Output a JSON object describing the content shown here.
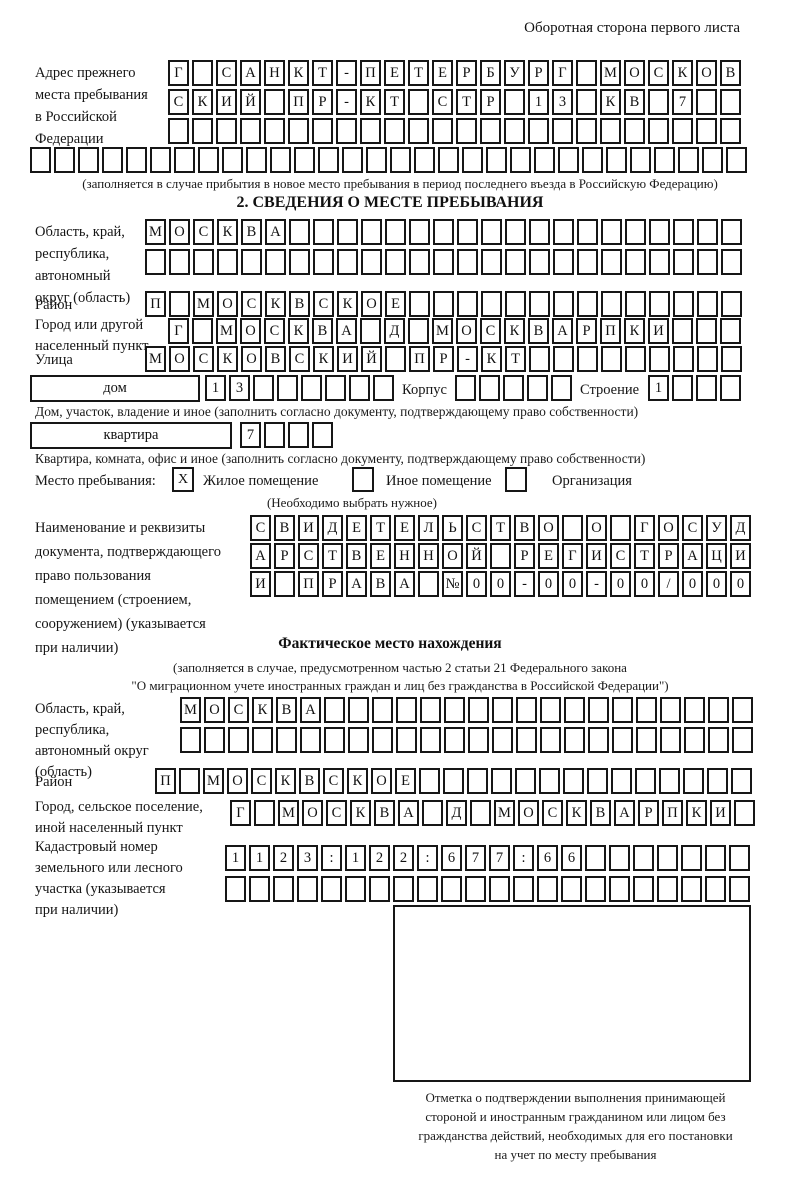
{
  "page": {
    "top_right_title": "Оборотная сторона первого листа"
  },
  "prev_address": {
    "label": "Адрес прежнего\nместа пребывания\nв Российской\nФедерации",
    "row1": "Г САНКТ-ПЕТЕРБУРГ МОСКОВ",
    "row2": "СКИЙ ПР-КТ СТР 13 КВ 7  ",
    "row3": "                        ",
    "row4": "                              ",
    "note": "(заполняется в случае прибытия в новое место пребывания в период последнего въезда в Российскую Федерацию)"
  },
  "section2": {
    "header": "2. СВЕДЕНИЯ О МЕСТЕ ПРЕБЫВАНИЯ",
    "region_label": "Область, край,\nреспублика,\nавтономный\nокруг (область)",
    "region_row1": "МОСКВА                   ",
    "region_row2": "                         ",
    "district_label": "Район",
    "district_row": "П МОСКВСКОЕ              ",
    "city_label": "Город или другой\nнаселенный пункт",
    "city_row": "Г МОСКВА Д МОСКВАРПКИ   ",
    "street_label": "Улица",
    "street_row": "МОСКОВСКИЙ ПР-КТ         ",
    "house_box_label": "дом",
    "house_cells": "13      ",
    "korpus_label": "Корпус",
    "korpus_cells": "     ",
    "stroenie_label": "Строение",
    "stroenie_cells": "1   ",
    "house_note": "Дом, участок, владение и иное (заполнить согласно документу, подтверждающему право собственности)",
    "apartment_box_label": "квартира",
    "apartment_cells": "7   ",
    "apartment_note": "Квартира, комната, офис и иное (заполнить согласно документу, подтверждающему право собственности)",
    "stay_type": {
      "label": "Место пребывания:",
      "options": [
        {
          "label": "Жилое помещение",
          "checked": "X"
        },
        {
          "label": "Иное помещение",
          "checked": ""
        },
        {
          "label": "Организация",
          "checked": ""
        }
      ],
      "hint": "(Необходимо выбрать нужное)"
    },
    "doc_label": "Наименование и реквизиты\nдокумента, подтверждающего\nправо пользования\nпомещением (строением,\nсооружением) (указывается\nпри наличии)",
    "doc_row1": "СВИДЕТЕЛЬСТВО О ГОСУД",
    "doc_row2": "АРСТВЕННОЙ РЕГИСТРАЦИ",
    "doc_row3": "И ПРАВА №00-00-00/000"
  },
  "actual_location": {
    "header": "Фактическое место нахождения",
    "note1": "(заполняется в случае, предусмотренном частью 2 статьи 21 Федерального закона",
    "note2": "\"О миграционном учете иностранных граждан и лиц без гражданства в Российской Федерации\")",
    "region_label": "Область, край,\nреспублика,\nавтономный округ\n(область)",
    "region_row1": "МОСКВА                  ",
    "region_row2": "                        ",
    "district_label": "Район",
    "district_row": "П МОСКВСКОЕ              ",
    "city_label": "Город, сельское поселение,\nиной населенный пункт",
    "city_row": "Г МОСКВА Д МОСКВАРПКИ ",
    "cadastre_label": "Кадастровый номер\nземельного или лесного\nучастка (указывается\nпри наличии)",
    "cadastre_row1": "1123:122:677:66       ",
    "cadastre_row2": "                      "
  },
  "confirmation": {
    "caption": "Отметка о подтверждении выполнения принимающей\nстороной и иностранным гражданином или лицом без\nгражданства действий, необходимых для его постановки\nна учет по месту пребывания"
  }
}
